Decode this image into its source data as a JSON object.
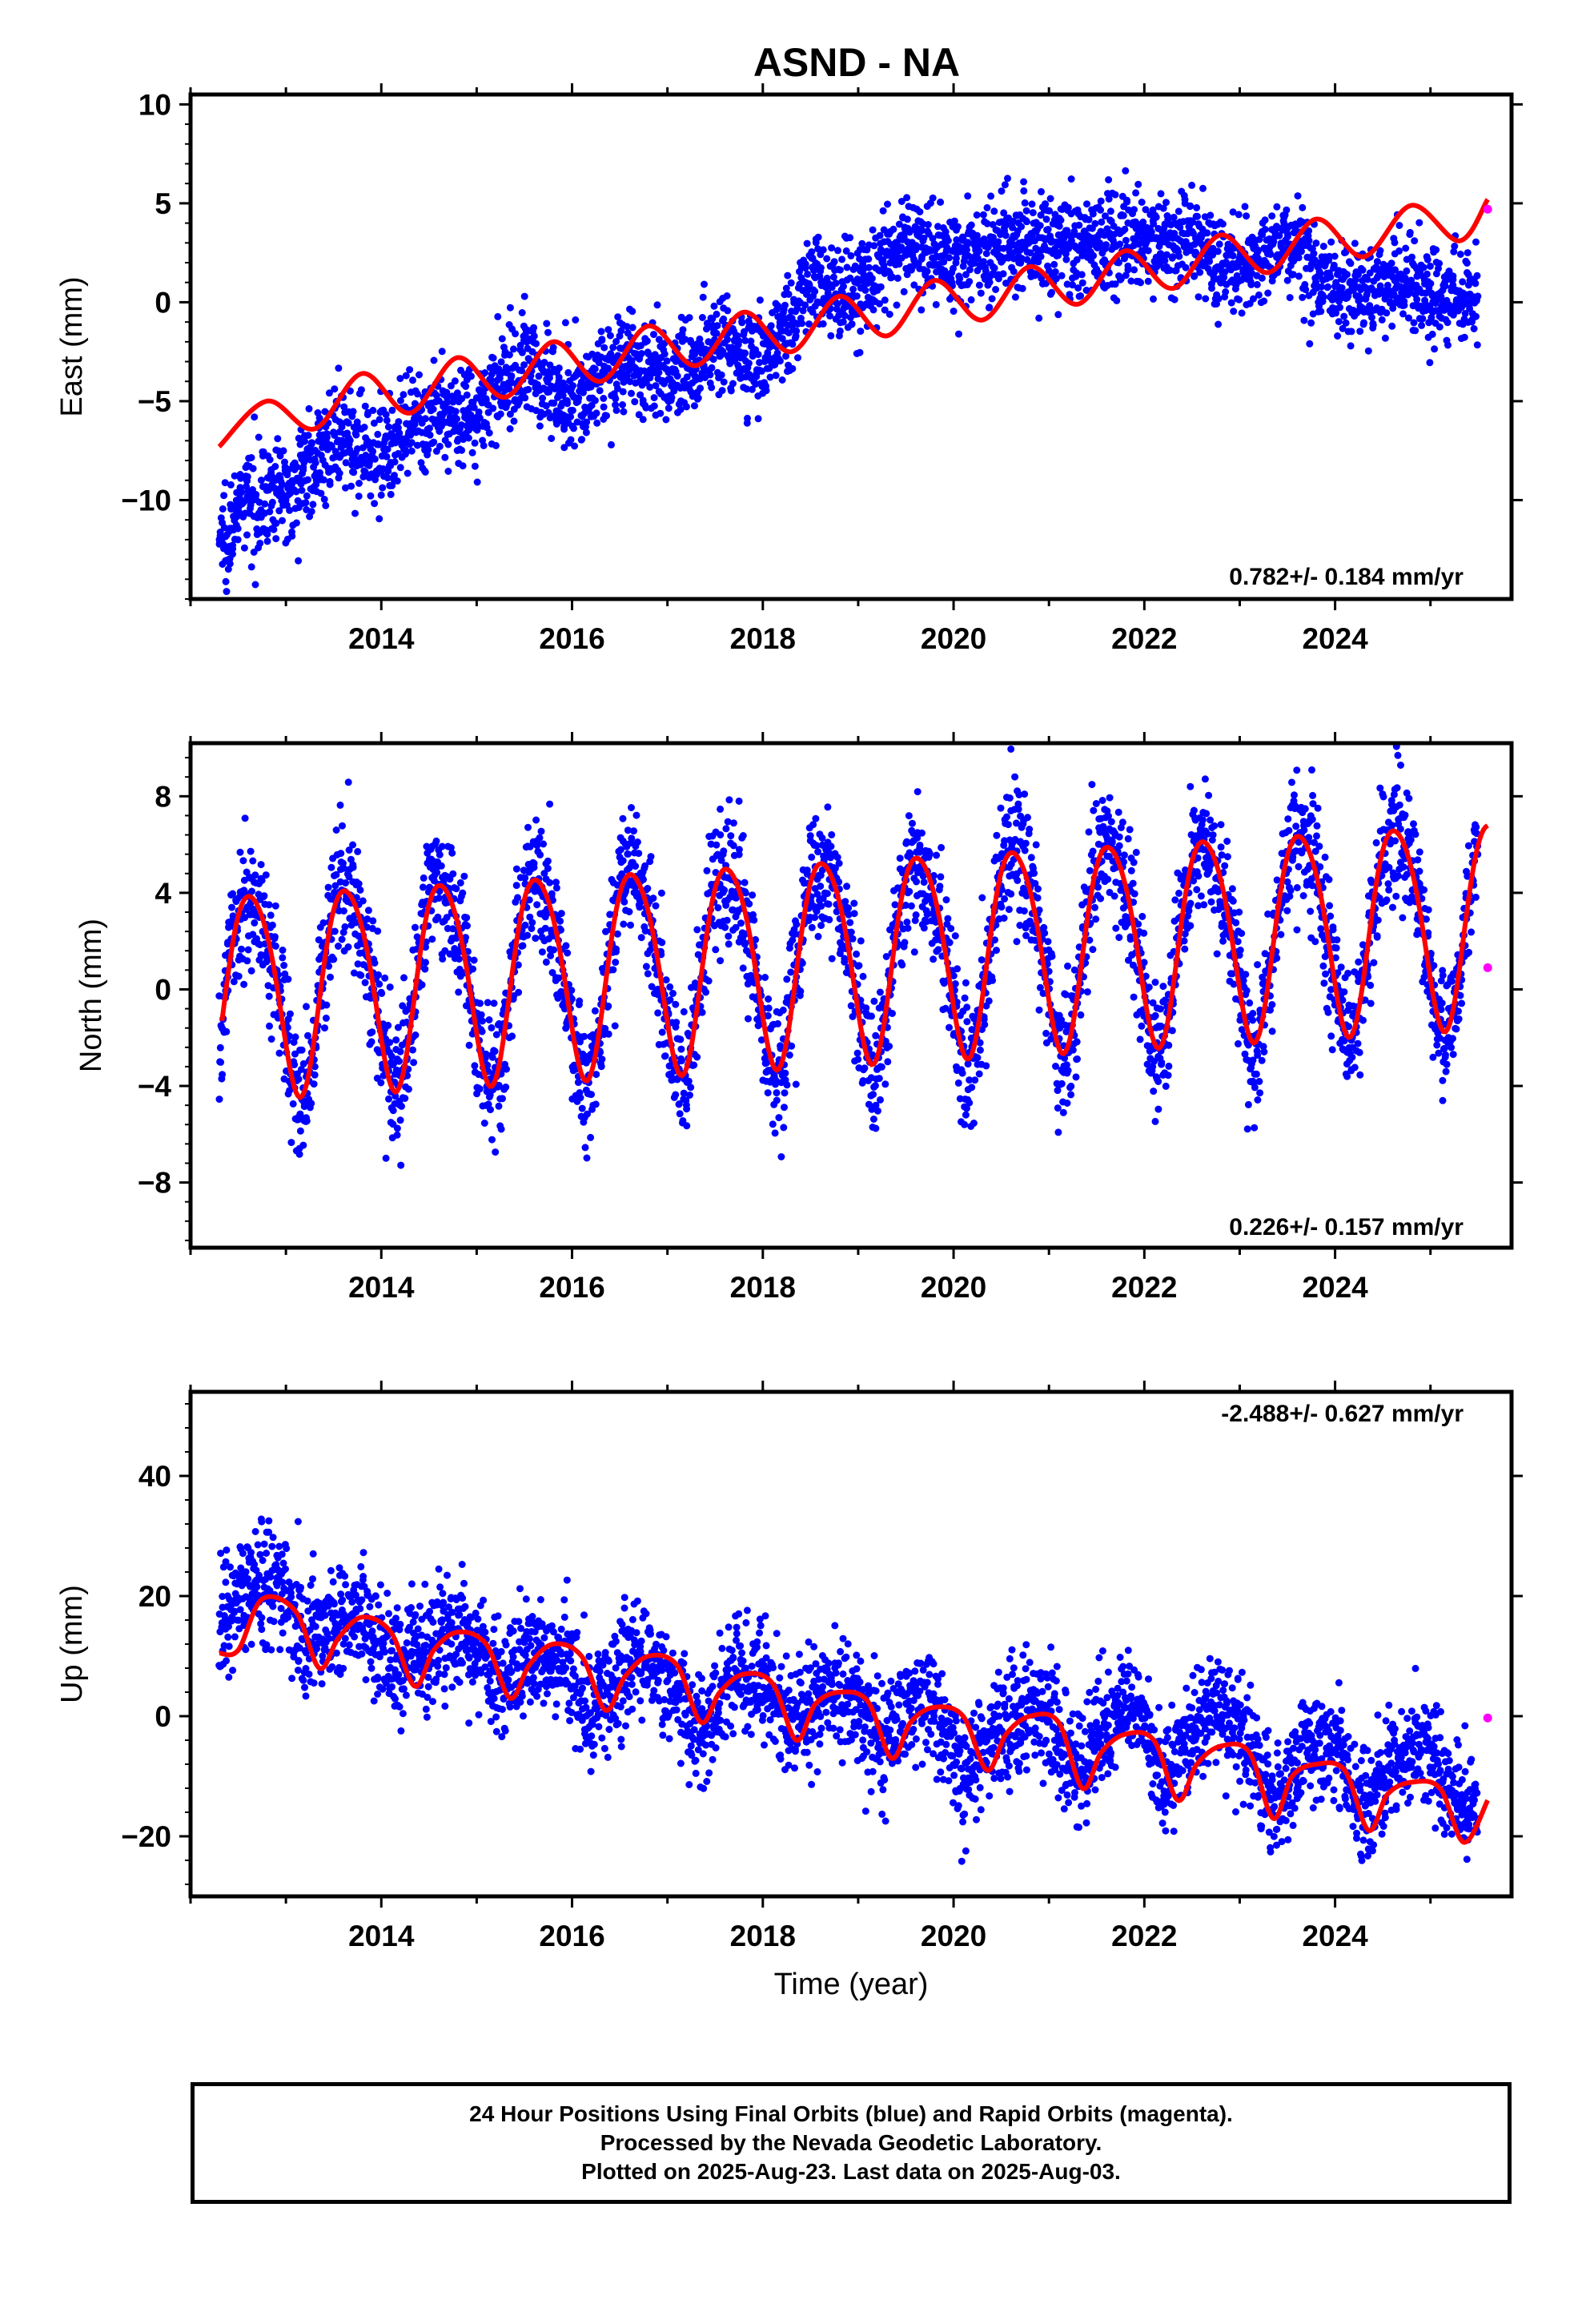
{
  "figure": {
    "title": "ASND - NA",
    "xlabel": "Time (year)",
    "colors": {
      "final_orbits": "#0000ff",
      "rapid_orbits": "#ff00ff",
      "model_fit": "#ff0000",
      "frame": "#000000"
    }
  },
  "chart_data": [
    {
      "type": "scatter",
      "panel": "east",
      "ylabel": "East (mm)",
      "rate_label": "0.782+/- 0.184 mm/yr",
      "xlim": [
        2012.0,
        2025.85
      ],
      "ylim": [
        -15,
        10.5
      ],
      "yticks": [
        10,
        5,
        0,
        -5,
        -10
      ],
      "xticks": [
        2014,
        2016,
        2018,
        2020,
        2022,
        2024
      ],
      "grid": false,
      "series": [
        {
          "name": "Final Orbits (blue)",
          "x": [
            2012.3,
            2012.6,
            2013.0,
            2013.5,
            2014.0,
            2014.5,
            2015.0,
            2015.5,
            2016.0,
            2016.5,
            2017.0,
            2017.5,
            2018.0,
            2018.5,
            2019.0,
            2019.5,
            2020.0,
            2020.5,
            2021.0,
            2021.5,
            2022.0,
            2022.5,
            2023.0,
            2023.5,
            2024.0,
            2024.5,
            2025.0,
            2025.5
          ],
          "y": [
            -12,
            -10,
            -9.5,
            -7,
            -7.5,
            -6,
            -5.5,
            -3,
            -5,
            -3,
            -4,
            -2,
            -3,
            1,
            0.5,
            3,
            2,
            3,
            3,
            3,
            3,
            3,
            1.5,
            3,
            0.5,
            1,
            0.5,
            0
          ]
        },
        {
          "name": "Rapid Orbits (magenta)",
          "x": [
            2025.6
          ],
          "y": [
            4.7
          ]
        }
      ],
      "model": {
        "name": "fit",
        "x": [
          2012.3,
          2012.8,
          2013.3,
          2013.8,
          2014.3,
          2014.8,
          2015.3,
          2015.8,
          2016.3,
          2016.8,
          2017.3,
          2017.8,
          2018.3,
          2018.8,
          2019.3,
          2019.8,
          2020.3,
          2020.8,
          2021.3,
          2021.8,
          2022.3,
          2022.8,
          2023.3,
          2023.8,
          2024.3,
          2024.8,
          2025.3,
          2025.6
        ],
        "y": [
          -7.3,
          -5.0,
          -6.4,
          -3.6,
          -5.6,
          -2.8,
          -4.8,
          -2.0,
          -4.0,
          -1.2,
          -3.2,
          -0.5,
          -2.5,
          0.3,
          -1.7,
          1.1,
          -0.9,
          1.8,
          -0.1,
          2.6,
          0.7,
          3.4,
          1.5,
          4.2,
          2.3,
          4.9,
          3.1,
          5.2
        ]
      }
    },
    {
      "type": "scatter",
      "panel": "north",
      "ylabel": "North (mm)",
      "rate_label": "0.226+/- 0.157 mm/yr",
      "xlim": [
        2012.0,
        2025.85
      ],
      "ylim": [
        -10.7,
        10.2
      ],
      "yticks": [
        8,
        4,
        0,
        -4,
        -8
      ],
      "xticks": [
        2014,
        2016,
        2018,
        2020,
        2022,
        2024
      ],
      "grid": false,
      "series": [
        {
          "name": "Final Orbits (blue)",
          "x": [
            2012.3,
            2012.55,
            2012.8,
            2013.05,
            2013.3,
            2013.55,
            2013.8,
            2014.05,
            2014.3,
            2014.55,
            2014.8,
            2015.05,
            2015.3,
            2015.55,
            2015.8,
            2016.05,
            2016.3,
            2016.55,
            2016.8,
            2017.05,
            2017.3,
            2017.55,
            2017.8,
            2018.05,
            2018.3,
            2018.55,
            2018.8,
            2019.05,
            2019.3,
            2019.55,
            2019.8,
            2020.05,
            2020.3,
            2020.55,
            2020.8,
            2021.05,
            2021.3,
            2021.55,
            2021.8,
            2022.05,
            2022.3,
            2022.55,
            2022.8,
            2023.05,
            2023.3,
            2023.55,
            2023.8,
            2024.05,
            2024.3,
            2024.55,
            2024.8,
            2025.05,
            2025.3,
            2025.5
          ],
          "y": [
            -2,
            3,
            -1,
            -7,
            -1,
            4,
            -3,
            -7,
            0,
            6,
            -1,
            -4,
            1,
            5,
            -1,
            -4,
            1,
            5,
            -2,
            -4,
            1,
            6,
            -2,
            -3,
            1,
            6,
            -2,
            -3,
            1,
            5,
            -1,
            -3,
            1,
            5,
            -1,
            -3,
            1,
            5,
            -1,
            -3,
            2,
            7,
            -1,
            -1,
            2,
            6,
            0,
            -2,
            2,
            6,
            0,
            -2,
            1,
            4
          ]
        },
        {
          "name": "Rapid Orbits (magenta)",
          "x": [
            2025.6
          ],
          "y": [
            0.9
          ]
        }
      ],
      "model": {
        "name": "fit",
        "annual_amplitude": 4.2,
        "semiannual_amplitude": 0.5,
        "rate": 0.226,
        "x": [
          2012.33,
          2025.6
        ],
        "y": [
          -1.2,
          6.2
        ]
      }
    },
    {
      "type": "scatter",
      "panel": "up",
      "ylabel": "Up (mm)",
      "rate_label": "-2.488+/- 0.627 mm/yr",
      "xlim": [
        2012.0,
        2025.85
      ],
      "ylim": [
        -30,
        54
      ],
      "yticks": [
        40,
        20,
        0,
        -20
      ],
      "xticks": [
        2014,
        2016,
        2018,
        2020,
        2022,
        2024
      ],
      "grid": false,
      "series": [
        {
          "name": "Final Orbits (blue)",
          "x": [
            2012.3,
            2012.6,
            2012.9,
            2013.2,
            2013.5,
            2013.8,
            2014.1,
            2014.4,
            2014.7,
            2015.0,
            2015.3,
            2015.6,
            2015.9,
            2016.2,
            2016.5,
            2016.8,
            2017.1,
            2017.4,
            2017.7,
            2018.0,
            2018.3,
            2018.6,
            2018.9,
            2019.2,
            2019.5,
            2019.8,
            2020.1,
            2020.4,
            2020.7,
            2021.0,
            2021.3,
            2021.6,
            2021.9,
            2022.2,
            2022.5,
            2022.8,
            2023.1,
            2023.4,
            2023.7,
            2024.0,
            2024.3,
            2024.6,
            2024.9,
            2025.2,
            2025.5
          ],
          "y": [
            14,
            22,
            22,
            12,
            15,
            18,
            8,
            10,
            14,
            12,
            5,
            11,
            10,
            0,
            8,
            10,
            2,
            -2,
            7,
            6,
            -3,
            3,
            4,
            -5,
            1,
            2,
            -10,
            -4,
            1,
            0,
            -10,
            -2,
            4,
            -12,
            -3,
            2,
            -6,
            -14,
            -4,
            -5,
            -16,
            -8,
            -5,
            -12,
            -18
          ]
        },
        {
          "name": "Rapid Orbits (magenta)",
          "x": [
            2025.6
          ],
          "y": [
            -0.3
          ]
        }
      ],
      "model": {
        "name": "fit",
        "x": [
          2012.3,
          2012.5,
          2012.75,
          2013.1,
          2013.35,
          2013.55,
          2013.8,
          2014.1,
          2014.35,
          2014.55,
          2014.8,
          2015.1,
          2015.35,
          2015.55,
          2015.8,
          2016.1,
          2016.35,
          2016.55,
          2016.8,
          2017.1,
          2017.35,
          2017.55,
          2017.8,
          2018.1,
          2018.35,
          2018.55,
          2018.8,
          2019.1,
          2019.35,
          2019.55,
          2019.8,
          2020.1,
          2020.35,
          2020.55,
          2020.8,
          2021.1,
          2021.35,
          2021.55,
          2021.8,
          2022.1,
          2022.35,
          2022.55,
          2022.8,
          2023.1,
          2023.35,
          2023.55,
          2023.8,
          2024.1,
          2024.35,
          2024.55,
          2024.8,
          2025.1,
          2025.35,
          2025.6
        ],
        "y": [
          10.5,
          11,
          19.5,
          17.5,
          8,
          13,
          16.5,
          14,
          5,
          11,
          14,
          12,
          3,
          8.5,
          12,
          10,
          1,
          6.5,
          10,
          8.5,
          -1,
          4,
          7,
          5.5,
          -4,
          2,
          4,
          2.5,
          -7,
          -1,
          1.5,
          0,
          -9,
          -3,
          0,
          -1,
          -12,
          -6,
          -3,
          -4,
          -14,
          -8,
          -5,
          -6,
          -17,
          -10,
          -8,
          -9,
          -19,
          -13,
          -11,
          -12,
          -21,
          -14
        ]
      }
    }
  ],
  "footer": {
    "line1": "24 Hour Positions Using Final Orbits (blue) and Rapid Orbits (magenta).",
    "line2": "Processed by the Nevada Geodetic Laboratory.",
    "line3": "Plotted on 2025-Aug-23. Last data on 2025-Aug-03."
  }
}
